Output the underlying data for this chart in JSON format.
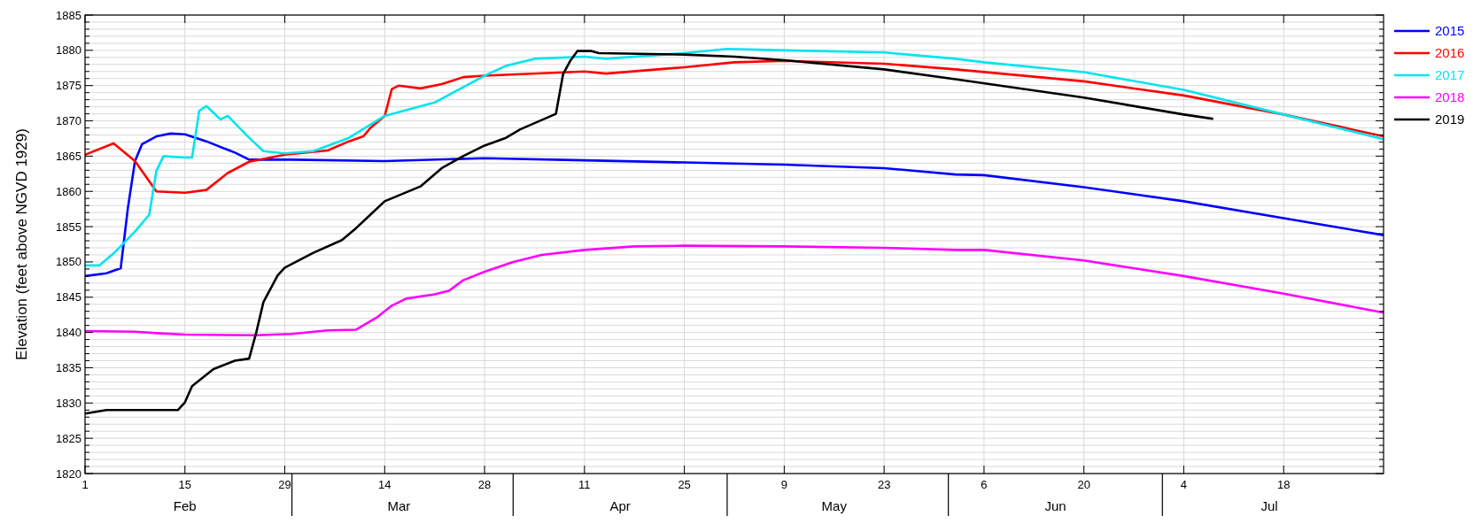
{
  "chart_data": {
    "type": "line",
    "ylabel": "Elevation (feet above NGVD 1929)",
    "xlim": [
      "--02-01",
      "--08-01"
    ],
    "ylim": [
      1820,
      1885
    ],
    "xticks": [
      {
        "value": "--02-01",
        "label": "1"
      },
      {
        "value": "--02-15",
        "label": "15"
      },
      {
        "value": "--02-29",
        "label": "29"
      },
      {
        "value": "--03-14",
        "label": "14"
      },
      {
        "value": "--03-28",
        "label": "28"
      },
      {
        "value": "--04-11",
        "label": "11"
      },
      {
        "value": "--04-25",
        "label": "25"
      },
      {
        "value": "--05-09",
        "label": "9"
      },
      {
        "value": "--05-23",
        "label": "23"
      },
      {
        "value": "--06-06",
        "label": "6"
      },
      {
        "value": "--06-20",
        "label": "20"
      },
      {
        "value": "--07-04",
        "label": "4"
      },
      {
        "value": "--07-18",
        "label": "18"
      }
    ],
    "x2lim": [
      "--02-01",
      "--08-01"
    ],
    "x2ticks": [
      {
        "value": "--02-15",
        "label": "Feb"
      },
      {
        "value": "--03-16",
        "label": "Mar"
      },
      {
        "value": "--04-16",
        "label": "Apr"
      },
      {
        "value": "--05-16",
        "label": "May"
      },
      {
        "value": "--06-16",
        "label": "Jun"
      },
      {
        "value": "--07-16",
        "label": "Jul"
      }
    ],
    "yticks": [
      1820,
      {
        "value": 1821,
        "label": null
      },
      {
        "value": 1822,
        "label": null
      },
      {
        "value": 1823,
        "label": null
      },
      {
        "value": 1824,
        "label": null
      },
      1825,
      {
        "value": 1826,
        "label": null
      },
      {
        "value": 1827,
        "label": null
      },
      {
        "value": 1828,
        "label": null
      },
      {
        "value": 1829,
        "label": null
      },
      1830,
      {
        "value": 1831,
        "label": null
      },
      {
        "value": 1832,
        "label": null
      },
      {
        "value": 1833,
        "label": null
      },
      {
        "value": 1834,
        "label": null
      },
      1835,
      {
        "value": 1836,
        "label": null
      },
      {
        "value": 1837,
        "label": null
      },
      {
        "value": 1838,
        "label": null
      },
      {
        "value": 1839,
        "label": null
      },
      1840,
      {
        "value": 1841,
        "label": null
      },
      {
        "value": 1842,
        "label": null
      },
      {
        "value": 1843,
        "label": null
      },
      {
        "value": 1844,
        "label": null
      },
      1845,
      {
        "value": 1846,
        "label": null
      },
      {
        "value": 1847,
        "label": null
      },
      {
        "value": 1848,
        "label": null
      },
      {
        "value": 1849,
        "label": null
      },
      1850,
      {
        "value": 1851,
        "label": null
      },
      {
        "value": 1852,
        "label": null
      },
      {
        "value": 1853,
        "label": null
      },
      {
        "value": 1854,
        "label": null
      },
      1855,
      {
        "value": 1856,
        "label": null
      },
      {
        "value": 1857,
        "label": null
      },
      {
        "value": 1858,
        "label": null
      },
      {
        "value": 1859,
        "label": null
      },
      1860,
      {
        "value": 1861,
        "label": null
      },
      {
        "value": 1862,
        "label": null
      },
      {
        "value": 1863,
        "label": null
      },
      {
        "value": 1864,
        "label": null
      },
      1865,
      {
        "value": 1866,
        "label": null
      },
      {
        "value": 1867,
        "label": null
      },
      {
        "value": 1868,
        "label": null
      },
      {
        "value": 1869,
        "label": null
      },
      1870,
      {
        "value": 1871,
        "label": null
      },
      {
        "value": 1872,
        "label": null
      },
      {
        "value": 1873,
        "label": null
      },
      {
        "value": 1874,
        "label": null
      },
      1875,
      {
        "value": 1876,
        "label": null
      },
      {
        "value": 1877,
        "label": null
      },
      {
        "value": 1878,
        "label": null
      },
      {
        "value": 1879,
        "label": null
      },
      1880,
      {
        "value": 1881,
        "label": null
      },
      {
        "value": 1882,
        "label": null
      },
      {
        "value": 1883,
        "label": null
      },
      {
        "value": 1884,
        "label": null
      },
      1885
    ],
    "grid": true,
    "legend": "right",
    "marker": "none",
    "line_style": "solid",
    "series": [
      {
        "name": "2015",
        "color": "#0000ff",
        "x": [
          "--02-01",
          "--02-04",
          "--02-06",
          "--02-07",
          "--02-08",
          "--02-09",
          "--02-11",
          "--02-13",
          "--02-15",
          "--02-18",
          "--02-22",
          "--02-24",
          "--03-01",
          "--03-14",
          "--03-28",
          "--04-11",
          "--04-25",
          "--05-09",
          "--05-23",
          "--06-02",
          "--06-06",
          "--06-20",
          "--07-04",
          "--07-18",
          "--08-01"
        ],
        "values": [
          1848.0,
          1848.4,
          1849.1,
          1857.6,
          1864.3,
          1866.7,
          1867.8,
          1868.2,
          1868.1,
          1867.1,
          1865.5,
          1864.5,
          1864.5,
          1864.3,
          1864.7,
          1864.4,
          1864.1,
          1863.8,
          1863.3,
          1862.4,
          1862.3,
          1860.6,
          1858.6,
          1856.2,
          1853.8
        ]
      },
      {
        "name": "2016",
        "color": "#ff0000",
        "x": [
          "--02-01",
          "--02-05",
          "--02-08",
          "--02-11",
          "--02-15",
          "--02-18",
          "--02-21",
          "--02-24",
          "--02-29",
          "--03-06",
          "--03-09",
          "--03-11",
          "--03-12",
          "--03-14",
          "--03-15",
          "--03-16",
          "--03-19",
          "--03-22",
          "--03-25",
          "--03-28",
          "--04-11",
          "--04-14",
          "--04-25",
          "--05-02",
          "--05-09",
          "--05-23",
          "--06-02",
          "--06-20",
          "--07-04",
          "--07-18",
          "--08-01"
        ],
        "values": [
          1865.2,
          1866.8,
          1864.3,
          1860.0,
          1859.8,
          1860.2,
          1862.6,
          1864.2,
          1865.2,
          1865.8,
          1867.1,
          1867.8,
          1869.0,
          1870.7,
          1874.5,
          1875.0,
          1874.6,
          1875.2,
          1876.2,
          1876.4,
          1877.0,
          1876.7,
          1877.6,
          1878.3,
          1878.5,
          1878.1,
          1877.3,
          1875.6,
          1873.6,
          1870.9,
          1867.8
        ]
      },
      {
        "name": "2017",
        "color": "#00e5ee",
        "x": [
          "--02-01",
          "--02-03",
          "--02-05",
          "--02-08",
          "--02-10",
          "--02-11",
          "--02-12",
          "--02-15",
          "--02-16",
          "--02-17",
          "--02-18",
          "--02-20",
          "--02-21",
          "--02-24",
          "--02-26",
          "--02-29",
          "--03-04",
          "--03-09",
          "--03-14",
          "--03-21",
          "--03-28",
          "--03-31",
          "--04-04",
          "--04-11",
          "--04-14",
          "--04-25",
          "--05-01",
          "--05-09",
          "--05-23",
          "--06-02",
          "--06-06",
          "--06-20",
          "--07-04",
          "--07-18",
          "--08-01"
        ],
        "values": [
          1849.5,
          1849.5,
          1851.2,
          1854.3,
          1856.7,
          1862.9,
          1865.0,
          1864.8,
          1864.8,
          1871.4,
          1872.1,
          1870.2,
          1870.7,
          1867.6,
          1865.7,
          1865.4,
          1865.7,
          1867.6,
          1870.7,
          1872.6,
          1876.4,
          1877.8,
          1878.8,
          1879.1,
          1878.8,
          1879.6,
          1880.2,
          1880.0,
          1879.7,
          1878.8,
          1878.3,
          1876.9,
          1874.4,
          1870.9,
          1867.4
        ]
      },
      {
        "name": "2018",
        "color": "#ff00ff",
        "x": [
          "--02-01",
          "--02-08",
          "--02-11",
          "--02-15",
          "--02-25",
          "--03-01",
          "--03-06",
          "--03-10",
          "--03-13",
          "--03-15",
          "--03-17",
          "--03-21",
          "--03-23",
          "--03-25",
          "--03-28",
          "--04-01",
          "--04-05",
          "--04-11",
          "--04-18",
          "--04-25",
          "--05-09",
          "--05-23",
          "--06-02",
          "--06-06",
          "--06-20",
          "--07-04",
          "--07-18",
          "--08-01"
        ],
        "values": [
          1840.2,
          1840.1,
          1839.9,
          1839.7,
          1839.6,
          1839.8,
          1840.3,
          1840.4,
          1842.2,
          1843.8,
          1844.8,
          1845.4,
          1845.9,
          1847.4,
          1848.6,
          1850.0,
          1851.0,
          1851.7,
          1852.2,
          1852.3,
          1852.2,
          1852.0,
          1851.7,
          1851.7,
          1850.2,
          1848.0,
          1845.5,
          1842.8
        ]
      },
      {
        "name": "2019",
        "color": "#000000",
        "x": [
          "--02-01",
          "--02-04",
          "--02-14",
          "--02-15",
          "--02-16",
          "--02-19",
          "--02-22",
          "--02-24",
          "--02-25",
          "--02-26",
          "--02-28",
          "--02-29",
          "--03-04",
          "--03-08",
          "--03-10",
          "--03-12",
          "--03-14",
          "--03-19",
          "--03-22",
          "--03-25",
          "--03-28",
          "--03-31",
          "--04-02",
          "--04-07",
          "--04-08",
          "--04-09",
          "--04-10",
          "--04-12",
          "--04-13",
          "--04-25",
          "--05-02",
          "--05-09",
          "--05-23",
          "--06-02",
          "--06-20",
          "--07-04",
          "--07-08"
        ],
        "values": [
          1828.5,
          1829.0,
          1829.0,
          1830.1,
          1832.4,
          1834.8,
          1836.0,
          1836.3,
          1840.0,
          1844.3,
          1848.1,
          1849.2,
          1851.3,
          1853.1,
          1854.8,
          1856.7,
          1858.6,
          1860.7,
          1863.3,
          1865.0,
          1866.5,
          1867.6,
          1868.8,
          1871.0,
          1876.6,
          1878.5,
          1879.9,
          1879.9,
          1879.6,
          1879.4,
          1879.1,
          1878.6,
          1877.3,
          1875.9,
          1873.3,
          1870.9,
          1870.3
        ]
      }
    ]
  }
}
